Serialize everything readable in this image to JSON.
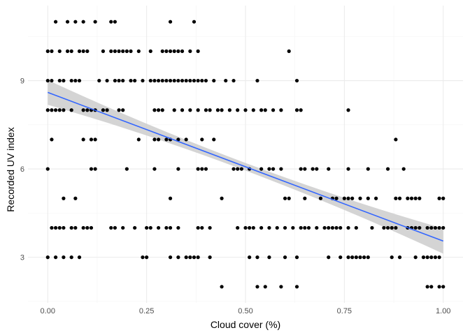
{
  "chart_data": {
    "type": "scatter",
    "title": "",
    "xlabel": "Cloud cover (%)",
    "ylabel": "Recorded UV index",
    "xlim": [
      -0.05,
      1.05
    ],
    "ylim": [
      1.45,
      11.55
    ],
    "x_ticks": [
      0.0,
      0.25,
      0.5,
      0.75,
      1.0
    ],
    "x_tick_labels": [
      "0.00",
      "0.25",
      "0.50",
      "0.75",
      "1.00"
    ],
    "y_ticks": [
      3,
      6,
      9
    ],
    "y_tick_labels": [
      "3",
      "6",
      "9"
    ],
    "grid": true,
    "legend": "none",
    "point_color": "#000000",
    "trend_color": "#3366ff",
    "band_color": "#cccccc",
    "trend_line": {
      "method": "linear",
      "x": [
        0.0,
        1.0
      ],
      "y": [
        8.6,
        3.55
      ],
      "ci_halfwidth": [
        0.42,
        0.13,
        0.43
      ]
    },
    "points": [
      [
        0.0,
        3
      ],
      [
        0.02,
        3
      ],
      [
        0.04,
        3
      ],
      [
        0.06,
        3
      ],
      [
        0.08,
        3
      ],
      [
        0.24,
        3
      ],
      [
        0.25,
        3
      ],
      [
        0.31,
        3
      ],
      [
        0.33,
        3
      ],
      [
        0.35,
        3
      ],
      [
        0.36,
        3
      ],
      [
        0.37,
        3
      ],
      [
        0.38,
        3
      ],
      [
        0.41,
        3
      ],
      [
        0.51,
        3
      ],
      [
        0.53,
        3
      ],
      [
        0.56,
        3
      ],
      [
        0.6,
        3
      ],
      [
        0.63,
        3
      ],
      [
        0.71,
        3
      ],
      [
        0.74,
        3
      ],
      [
        0.76,
        3
      ],
      [
        0.77,
        3
      ],
      [
        0.78,
        3
      ],
      [
        0.79,
        3
      ],
      [
        0.8,
        3
      ],
      [
        0.81,
        3
      ],
      [
        0.87,
        3
      ],
      [
        0.89,
        3
      ],
      [
        0.93,
        3
      ],
      [
        0.95,
        3
      ],
      [
        0.96,
        3
      ],
      [
        0.97,
        3
      ],
      [
        0.98,
        3
      ],
      [
        0.99,
        3
      ],
      [
        0.44,
        2
      ],
      [
        0.53,
        2
      ],
      [
        0.55,
        2
      ],
      [
        0.59,
        2
      ],
      [
        0.63,
        2
      ],
      [
        0.96,
        2
      ],
      [
        0.97,
        2
      ],
      [
        0.99,
        2
      ],
      [
        1.0,
        2
      ],
      [
        0.01,
        4
      ],
      [
        0.02,
        4
      ],
      [
        0.03,
        4
      ],
      [
        0.04,
        4
      ],
      [
        0.06,
        4
      ],
      [
        0.07,
        4
      ],
      [
        0.09,
        4
      ],
      [
        0.1,
        4
      ],
      [
        0.11,
        4
      ],
      [
        0.16,
        4
      ],
      [
        0.17,
        4
      ],
      [
        0.19,
        4
      ],
      [
        0.22,
        4
      ],
      [
        0.25,
        4
      ],
      [
        0.26,
        4
      ],
      [
        0.28,
        4
      ],
      [
        0.3,
        4
      ],
      [
        0.31,
        4
      ],
      [
        0.33,
        4
      ],
      [
        0.38,
        4
      ],
      [
        0.39,
        4
      ],
      [
        0.41,
        4
      ],
      [
        0.48,
        4
      ],
      [
        0.5,
        4
      ],
      [
        0.51,
        4
      ],
      [
        0.52,
        4
      ],
      [
        0.54,
        4
      ],
      [
        0.56,
        4
      ],
      [
        0.58,
        4
      ],
      [
        0.6,
        4
      ],
      [
        0.62,
        4
      ],
      [
        0.64,
        4
      ],
      [
        0.65,
        4
      ],
      [
        0.66,
        4
      ],
      [
        0.68,
        4
      ],
      [
        0.7,
        4
      ],
      [
        0.71,
        4
      ],
      [
        0.72,
        4
      ],
      [
        0.73,
        4
      ],
      [
        0.74,
        4
      ],
      [
        0.76,
        4
      ],
      [
        0.78,
        4
      ],
      [
        0.82,
        4
      ],
      [
        0.85,
        4
      ],
      [
        0.86,
        4
      ],
      [
        0.87,
        4
      ],
      [
        0.88,
        4
      ],
      [
        0.91,
        4
      ],
      [
        0.92,
        4
      ],
      [
        0.93,
        4
      ],
      [
        0.94,
        4
      ],
      [
        0.96,
        4
      ],
      [
        0.97,
        4
      ],
      [
        0.98,
        4
      ],
      [
        0.99,
        4
      ],
      [
        1.0,
        4
      ],
      [
        0.04,
        5
      ],
      [
        0.07,
        5
      ],
      [
        0.31,
        5
      ],
      [
        0.44,
        5
      ],
      [
        0.6,
        5
      ],
      [
        0.61,
        5
      ],
      [
        0.65,
        5
      ],
      [
        0.69,
        5
      ],
      [
        0.72,
        5
      ],
      [
        0.73,
        5
      ],
      [
        0.75,
        5
      ],
      [
        0.76,
        5
      ],
      [
        0.77,
        5
      ],
      [
        0.79,
        5
      ],
      [
        0.81,
        5
      ],
      [
        0.83,
        5
      ],
      [
        0.88,
        5
      ],
      [
        0.89,
        5
      ],
      [
        0.91,
        5
      ],
      [
        0.92,
        5
      ],
      [
        0.93,
        5
      ],
      [
        0.94,
        5
      ],
      [
        0.99,
        5
      ],
      [
        1.0,
        5
      ],
      [
        0.0,
        6
      ],
      [
        0.11,
        6
      ],
      [
        0.12,
        6
      ],
      [
        0.2,
        6
      ],
      [
        0.27,
        6
      ],
      [
        0.33,
        6
      ],
      [
        0.38,
        6
      ],
      [
        0.39,
        6
      ],
      [
        0.4,
        6
      ],
      [
        0.47,
        6
      ],
      [
        0.48,
        6
      ],
      [
        0.49,
        6
      ],
      [
        0.51,
        6
      ],
      [
        0.54,
        6
      ],
      [
        0.56,
        6
      ],
      [
        0.57,
        6
      ],
      [
        0.59,
        6
      ],
      [
        0.64,
        6
      ],
      [
        0.65,
        6
      ],
      [
        0.67,
        6
      ],
      [
        0.68,
        6
      ],
      [
        0.71,
        6
      ],
      [
        0.76,
        6
      ],
      [
        0.81,
        6
      ],
      [
        0.86,
        6
      ],
      [
        0.9,
        6
      ],
      [
        0.01,
        7
      ],
      [
        0.09,
        7
      ],
      [
        0.11,
        7
      ],
      [
        0.12,
        7
      ],
      [
        0.23,
        7
      ],
      [
        0.27,
        7
      ],
      [
        0.28,
        7
      ],
      [
        0.3,
        7
      ],
      [
        0.31,
        7
      ],
      [
        0.33,
        7
      ],
      [
        0.35,
        7
      ],
      [
        0.39,
        7
      ],
      [
        0.42,
        7
      ],
      [
        0.88,
        7
      ],
      [
        0.0,
        8
      ],
      [
        0.01,
        8
      ],
      [
        0.02,
        8
      ],
      [
        0.03,
        8
      ],
      [
        0.04,
        8
      ],
      [
        0.06,
        8
      ],
      [
        0.09,
        8
      ],
      [
        0.1,
        8
      ],
      [
        0.11,
        8
      ],
      [
        0.12,
        8
      ],
      [
        0.14,
        8
      ],
      [
        0.15,
        8
      ],
      [
        0.18,
        8
      ],
      [
        0.19,
        8
      ],
      [
        0.27,
        8
      ],
      [
        0.28,
        8
      ],
      [
        0.29,
        8
      ],
      [
        0.32,
        8
      ],
      [
        0.34,
        8
      ],
      [
        0.36,
        8
      ],
      [
        0.38,
        8
      ],
      [
        0.4,
        8
      ],
      [
        0.41,
        8
      ],
      [
        0.43,
        8
      ],
      [
        0.44,
        8
      ],
      [
        0.46,
        8
      ],
      [
        0.48,
        8
      ],
      [
        0.5,
        8
      ],
      [
        0.52,
        8
      ],
      [
        0.54,
        8
      ],
      [
        0.55,
        8
      ],
      [
        0.57,
        8
      ],
      [
        0.59,
        8
      ],
      [
        0.63,
        8
      ],
      [
        0.64,
        8
      ],
      [
        0.76,
        8
      ],
      [
        0.0,
        9
      ],
      [
        0.01,
        9
      ],
      [
        0.03,
        9
      ],
      [
        0.04,
        9
      ],
      [
        0.06,
        9
      ],
      [
        0.07,
        9
      ],
      [
        0.08,
        9
      ],
      [
        0.13,
        9
      ],
      [
        0.15,
        9
      ],
      [
        0.17,
        9
      ],
      [
        0.18,
        9
      ],
      [
        0.19,
        9
      ],
      [
        0.21,
        9
      ],
      [
        0.22,
        9
      ],
      [
        0.24,
        9
      ],
      [
        0.26,
        9
      ],
      [
        0.27,
        9
      ],
      [
        0.28,
        9
      ],
      [
        0.29,
        9
      ],
      [
        0.3,
        9
      ],
      [
        0.31,
        9
      ],
      [
        0.32,
        9
      ],
      [
        0.33,
        9
      ],
      [
        0.34,
        9
      ],
      [
        0.35,
        9
      ],
      [
        0.36,
        9
      ],
      [
        0.37,
        9
      ],
      [
        0.38,
        9
      ],
      [
        0.39,
        9
      ],
      [
        0.4,
        9
      ],
      [
        0.42,
        9
      ],
      [
        0.45,
        9
      ],
      [
        0.47,
        9
      ],
      [
        0.53,
        9
      ],
      [
        0.63,
        9
      ],
      [
        0.0,
        10
      ],
      [
        0.01,
        10
      ],
      [
        0.03,
        10
      ],
      [
        0.05,
        10
      ],
      [
        0.06,
        10
      ],
      [
        0.08,
        10
      ],
      [
        0.09,
        10
      ],
      [
        0.1,
        10
      ],
      [
        0.14,
        10
      ],
      [
        0.16,
        10
      ],
      [
        0.17,
        10
      ],
      [
        0.18,
        10
      ],
      [
        0.19,
        10
      ],
      [
        0.2,
        10
      ],
      [
        0.21,
        10
      ],
      [
        0.23,
        10
      ],
      [
        0.26,
        10
      ],
      [
        0.29,
        10
      ],
      [
        0.3,
        10
      ],
      [
        0.31,
        10
      ],
      [
        0.32,
        10
      ],
      [
        0.33,
        10
      ],
      [
        0.34,
        10
      ],
      [
        0.36,
        10
      ],
      [
        0.38,
        10
      ],
      [
        0.61,
        10
      ],
      [
        0.02,
        11
      ],
      [
        0.05,
        11
      ],
      [
        0.07,
        11
      ],
      [
        0.09,
        11
      ],
      [
        0.12,
        11
      ],
      [
        0.16,
        11
      ],
      [
        0.17,
        11
      ],
      [
        0.31,
        11
      ],
      [
        0.37,
        11
      ]
    ]
  }
}
